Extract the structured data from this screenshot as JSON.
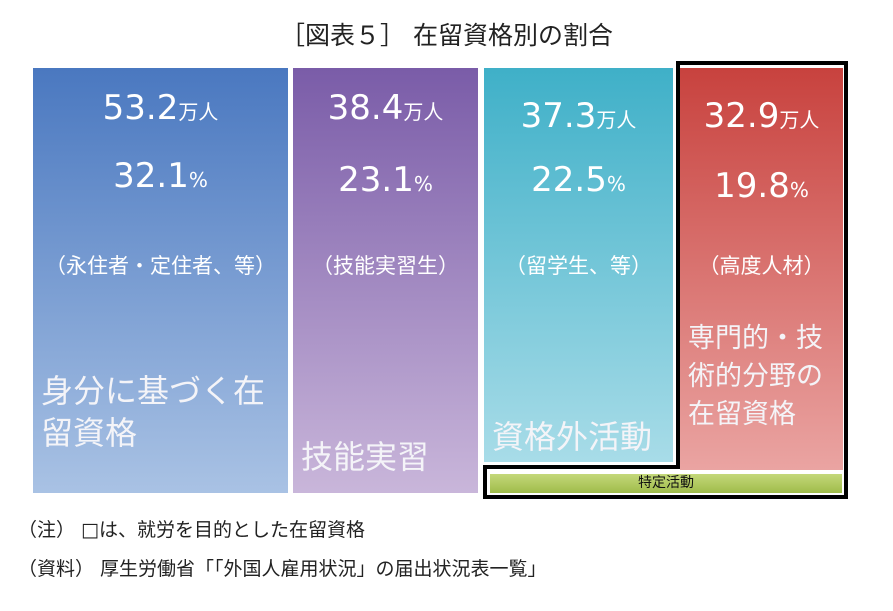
{
  "title": "［図表５］ 在留資格別の割合",
  "columns": [
    {
      "amount": "53.2",
      "amount_unit": "万人",
      "share": "32.1",
      "share_unit": "%",
      "note": "（永住者・定住者、等）",
      "category": "身分に基づく在留資格"
    },
    {
      "amount": "38.4",
      "amount_unit": "万人",
      "share": "23.1",
      "share_unit": "%",
      "note": "（技能実習生）",
      "category": "技能実習"
    },
    {
      "amount": "37.3",
      "amount_unit": "万人",
      "share": "22.5",
      "share_unit": "%",
      "note": "（留学生、等）",
      "category": "資格外活動"
    },
    {
      "amount": "32.9",
      "amount_unit": "万人",
      "share": "19.8",
      "share_unit": "%",
      "note": "（高度人材）",
      "category": "専門的・技術的分野の在留資格"
    }
  ],
  "strip": "特定活動",
  "footnotes": [
    "（注） □は、就労を目的とした在留資格",
    "（資料） 厚生労働省「「外国人雇用状況」の届出状況表一覧」"
  ]
}
